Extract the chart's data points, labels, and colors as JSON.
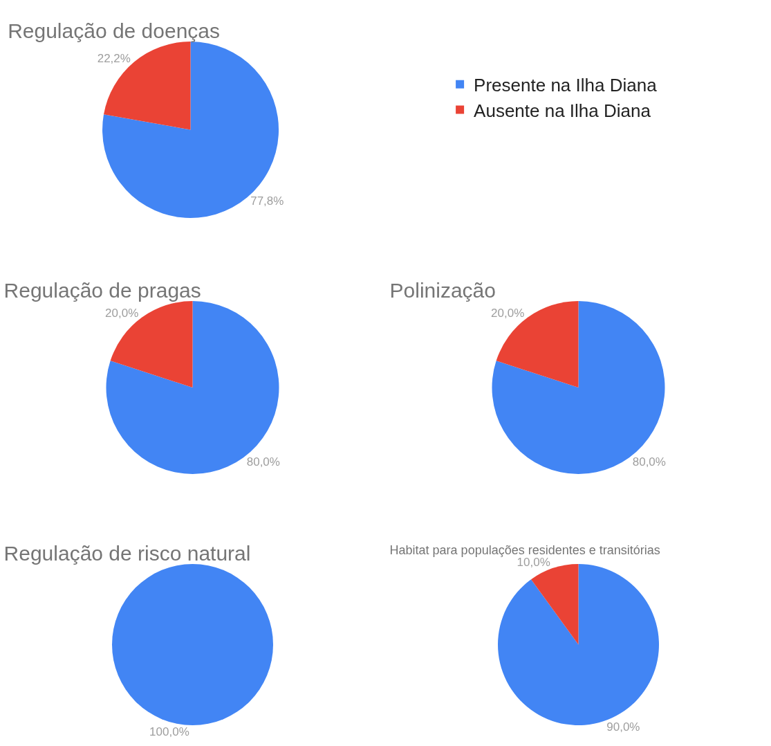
{
  "chart_data": [
    {
      "type": "pie",
      "title": "Regulação de doenças",
      "categories": [
        "Presente na Ilha Diana",
        "Ausente na Ilha Diana"
      ],
      "values": [
        77.8,
        22.2
      ],
      "colors": [
        "#4285f4",
        "#ea4335"
      ],
      "value_labels": [
        "77,8%",
        "22,2%"
      ],
      "legend": "right"
    },
    {
      "type": "pie",
      "title": "Regulação de pragas",
      "categories": [
        null,
        null
      ],
      "values": [
        80,
        20
      ],
      "colors": [
        "#4285f4",
        "#ea4335"
      ],
      "value_labels": [
        "80,0%",
        "20,0%"
      ]
    },
    {
      "type": "pie",
      "title": "Polinização",
      "categories": [
        null,
        null
      ],
      "values": [
        80,
        20
      ],
      "colors": [
        "#4285f4",
        "#ea4335"
      ],
      "value_labels": [
        "80,0%",
        "20,0%"
      ]
    },
    {
      "type": "pie",
      "title": "Regulação de risco natural",
      "categories": [
        null,
        null
      ],
      "values": [
        100,
        0
      ],
      "colors": [
        "#4285f4",
        "#ea4335"
      ],
      "value_labels": [
        "100,0%",
        null
      ]
    },
    {
      "type": "pie",
      "title": "Habitat para populações residentes e transitórias",
      "categories": [
        null,
        null
      ],
      "values": [
        90,
        10
      ],
      "colors": [
        "#4285f4",
        "#ea4335"
      ],
      "value_labels": [
        "90,0%",
        "10,0%"
      ]
    }
  ]
}
